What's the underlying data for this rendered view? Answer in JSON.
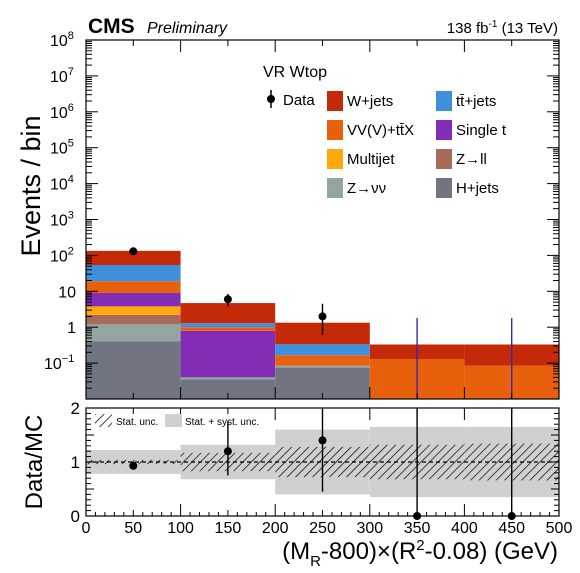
{
  "header": {
    "experiment": "CMS",
    "status": "Preliminary",
    "lumi_prefix": "138 fb",
    "lumi_exp": "-1",
    "lumi_suffix": " (13 TeV)"
  },
  "region_label": "VR Wtop",
  "legend": {
    "data": "Data",
    "wjets": "W+jets",
    "ttjets": "tt̄+jets",
    "vvttx": "VV(V)+tt̄X",
    "singlet": "Single t",
    "multijet": "Multijet",
    "zll": "Z→ll",
    "znunu": "Z→νν",
    "hjets": "H+jets"
  },
  "unc_legend": {
    "stat": "Stat. unc.",
    "statsyst": "Stat. + syst. unc."
  },
  "colors": {
    "wjets": "#c42908",
    "ttjets": "#3f90da",
    "vvttx": "#e8600c",
    "singlet": "#832db6",
    "multijet": "#ffa90e",
    "zll": "#a96b59",
    "znunu": "#94a4a2",
    "hjets": "#717581",
    "data": "#000000",
    "statsyst_band": "#d0d0d0"
  },
  "chart_data": [
    {
      "type": "bar",
      "stacked": true,
      "log_y": true,
      "ylabel": "Events / bin",
      "ylim": [
        0.01,
        100000000
      ],
      "yticks": [
        {
          "v": 0.1,
          "base": "10",
          "exp": "−1"
        },
        {
          "v": 1,
          "base": "1",
          "exp": ""
        },
        {
          "v": 10,
          "base": "10",
          "exp": ""
        },
        {
          "v": 100,
          "base": "10",
          "exp": "2"
        },
        {
          "v": 1000,
          "base": "10",
          "exp": "3"
        },
        {
          "v": 10000,
          "base": "10",
          "exp": "4"
        },
        {
          "v": 100000,
          "base": "10",
          "exp": "5"
        },
        {
          "v": 1000000,
          "base": "10",
          "exp": "6"
        },
        {
          "v": 10000000,
          "base": "10",
          "exp": "7"
        },
        {
          "v": 100000000,
          "base": "10",
          "exp": "8"
        }
      ],
      "xlim": [
        0,
        500
      ],
      "bins": [
        [
          0,
          100
        ],
        [
          100,
          200
        ],
        [
          200,
          300
        ],
        [
          300,
          400
        ],
        [
          400,
          500
        ]
      ],
      "series": [
        {
          "key": "hjets",
          "values": [
            0.4,
            0.035,
            0.075,
            0,
            0
          ]
        },
        {
          "key": "znunu",
          "values": [
            0.8,
            0.005,
            0.01,
            0,
            0
          ]
        },
        {
          "key": "zll",
          "values": [
            1.0,
            0,
            0,
            0,
            0
          ]
        },
        {
          "key": "multijet",
          "values": [
            1.6,
            0,
            0,
            0,
            0
          ]
        },
        {
          "key": "singlet",
          "values": [
            5.2,
            0.75,
            0,
            0,
            0
          ]
        },
        {
          "key": "vvttx",
          "values": [
            10,
            0.2,
            0.08,
            0.13,
            0.085
          ]
        },
        {
          "key": "ttjets",
          "values": [
            35,
            0.3,
            0.17,
            0,
            0
          ]
        },
        {
          "key": "wjets",
          "values": [
            80,
            3.4,
            1.0,
            0.2,
            0.245
          ]
        }
      ],
      "data_points": [
        {
          "x": 50,
          "y": 130,
          "lo": 119,
          "hi": 142
        },
        {
          "x": 150,
          "y": 6,
          "lo": 3.8,
          "hi": 8.5
        },
        {
          "x": 250,
          "y": 2,
          "lo": 0.6,
          "hi": 4.5
        },
        {
          "x": 350,
          "y": 0,
          "lo": 0,
          "hi": 1.8
        },
        {
          "x": 450,
          "y": 0,
          "lo": 0,
          "hi": 1.8
        }
      ]
    },
    {
      "type": "scatter",
      "xlabel": "(M_R-800)×(R²-0.08) (GeV)",
      "ylabel": "Data/MC",
      "ylim": [
        0,
        2
      ],
      "yticks": [
        0,
        1,
        2
      ],
      "xlim": [
        0,
        500
      ],
      "xticks": [
        0,
        50,
        100,
        150,
        200,
        250,
        300,
        350,
        400,
        450,
        500
      ],
      "bins": [
        [
          0,
          100
        ],
        [
          100,
          200
        ],
        [
          200,
          300
        ],
        [
          300,
          400
        ],
        [
          400,
          500
        ]
      ],
      "stat_band": [
        [
          0.96,
          1.04
        ],
        [
          0.83,
          1.17
        ],
        [
          0.72,
          1.28
        ],
        [
          0.68,
          1.32
        ],
        [
          0.66,
          1.34
        ]
      ],
      "statsyst_band": [
        [
          0.78,
          1.22
        ],
        [
          0.68,
          1.32
        ],
        [
          0.4,
          1.6
        ],
        [
          0.35,
          1.65
        ],
        [
          0.35,
          1.65
        ]
      ],
      "ratio_points": [
        {
          "x": 50,
          "y": 0.93,
          "lo": 0.87,
          "hi": 0.99
        },
        {
          "x": 150,
          "y": 1.2,
          "lo": 0.75,
          "hi": 1.75
        },
        {
          "x": 250,
          "y": 1.4,
          "lo": 0.45,
          "hi": 2.0
        },
        {
          "x": 350,
          "y": 0,
          "lo": 0,
          "hi": 2.0
        },
        {
          "x": 450,
          "y": 0,
          "lo": 0,
          "hi": 2.0
        }
      ]
    }
  ]
}
